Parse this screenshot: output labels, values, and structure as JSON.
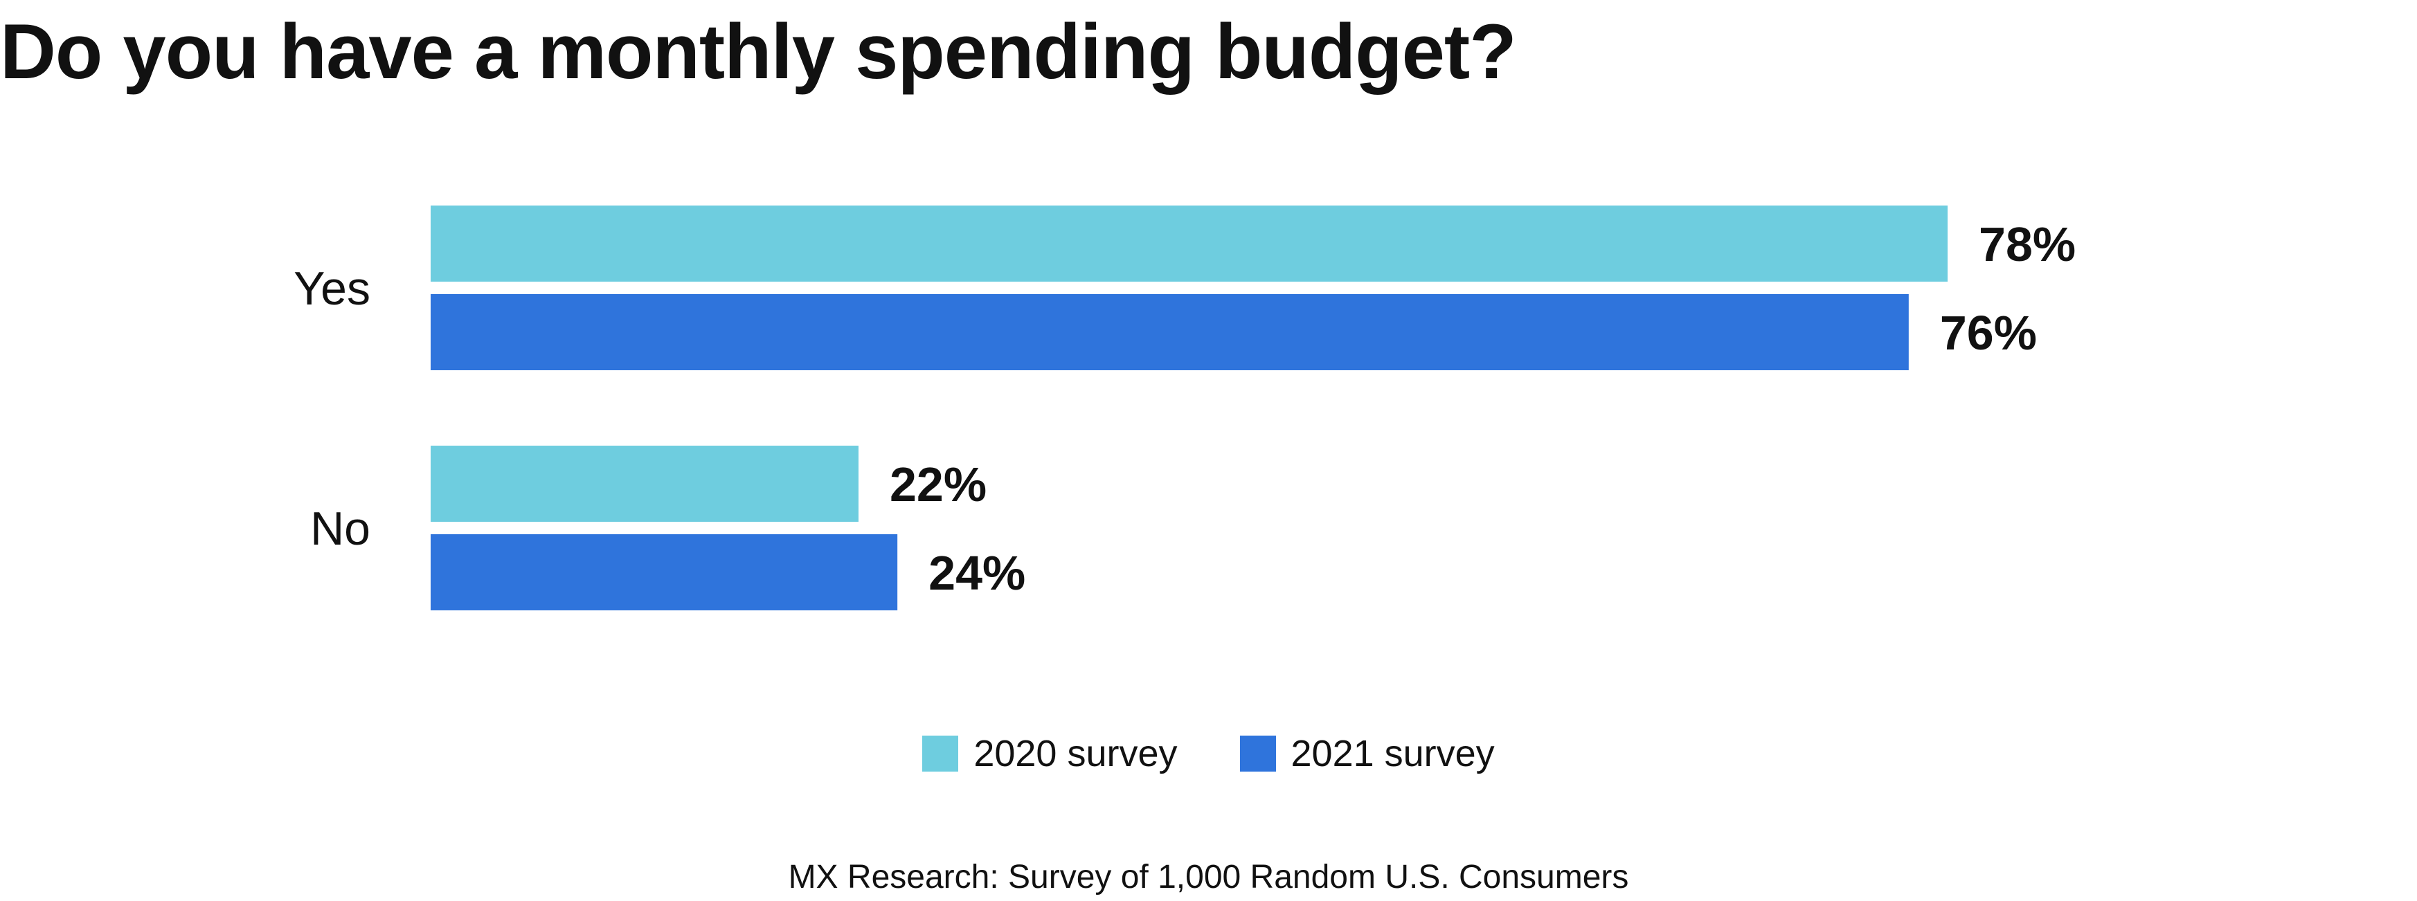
{
  "chart_data": {
    "type": "bar",
    "orientation": "horizontal",
    "title": "Do you have a monthly spending budget?",
    "categories": [
      "Yes",
      "No"
    ],
    "series": [
      {
        "name": "2020 survey",
        "color": "#6ecddf",
        "values": [
          78,
          22
        ],
        "labels": [
          "78%",
          "22%"
        ]
      },
      {
        "name": "2021 survey",
        "color": "#2f74dc",
        "values": [
          76,
          24
        ],
        "labels": [
          "76%",
          "24%"
        ]
      }
    ],
    "unit": "%",
    "xlim": [
      0,
      100
    ],
    "grid": false,
    "legend_position": "bottom-center",
    "source": "MX Research: Survey of 1,000 Random U.S. Consumers"
  }
}
